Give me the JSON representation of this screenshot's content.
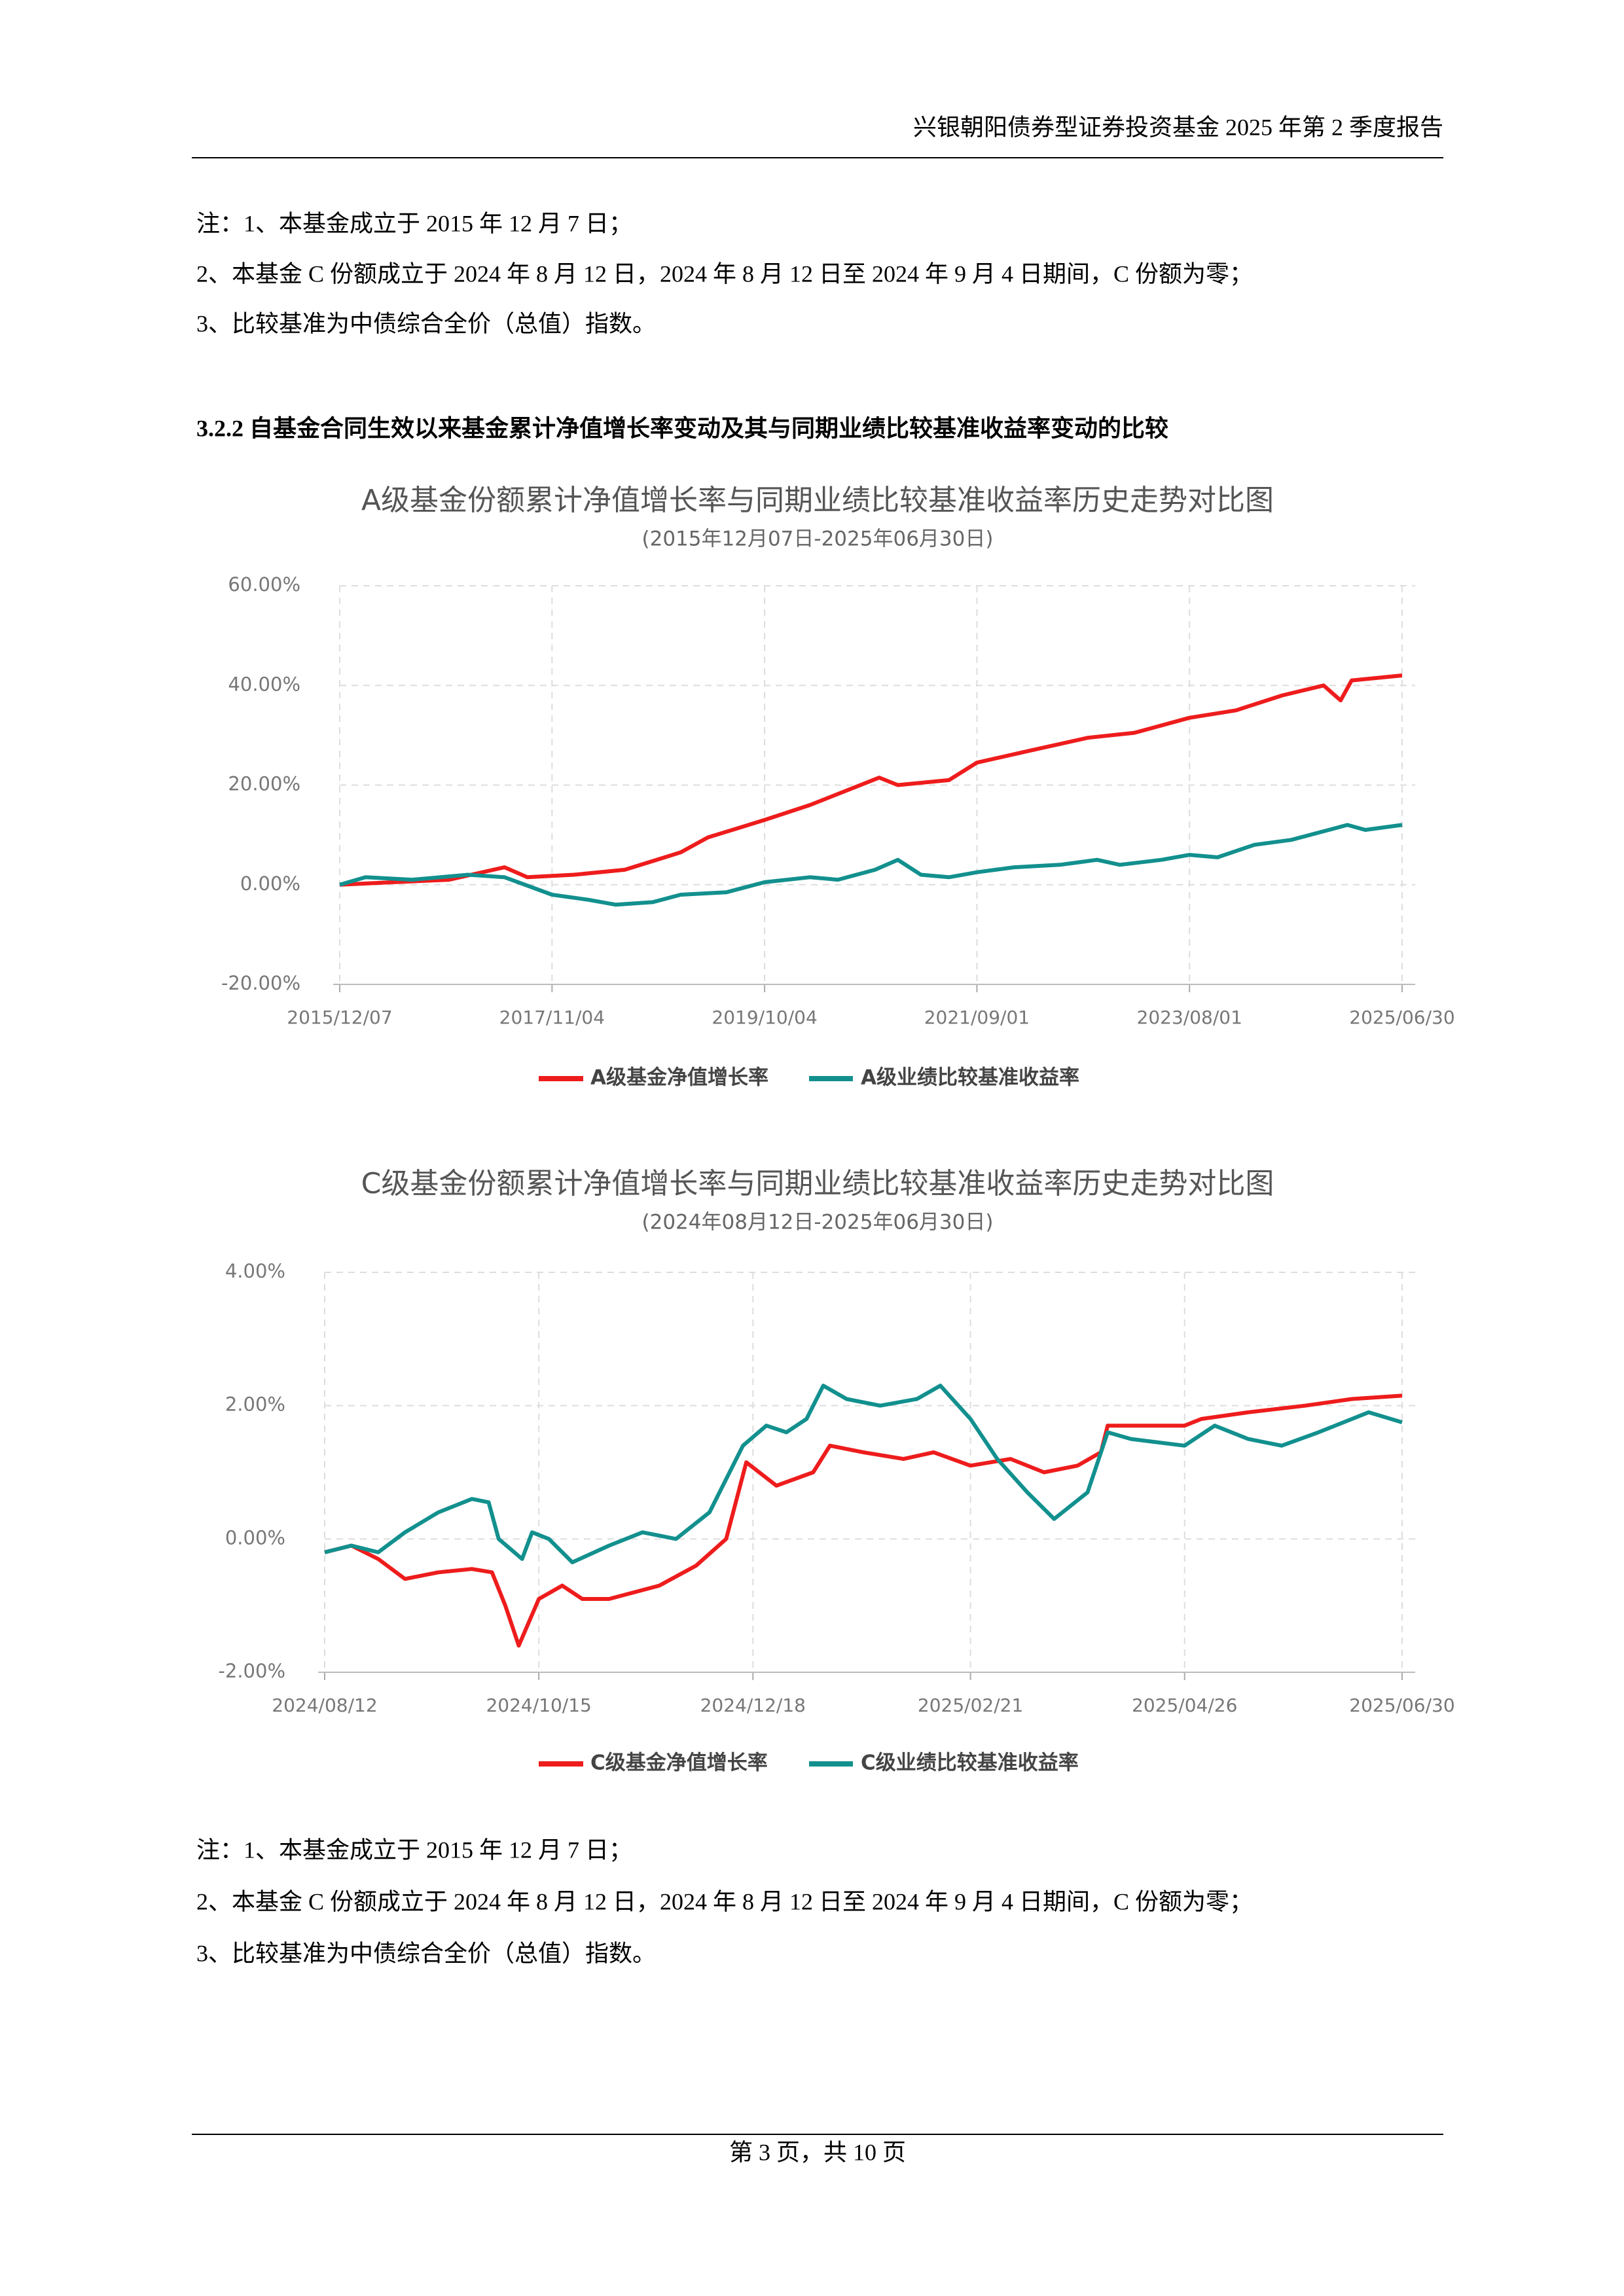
{
  "header": {
    "title": "兴银朝阳债券型证券投资基金 2025 年第 2 季度报告"
  },
  "notes_top": [
    "注：1、本基金成立于 2015 年 12 月 7 日；",
    "2、本基金 C 份额成立于 2024 年 8 月 12 日，2024 年 8 月 12 日至 2024 年 9 月 4 日期间，C 份额为零；",
    "3、比较基准为中债综合全价（总值）指数。"
  ],
  "section_title": "3.2.2 自基金合同生效以来基金累计净值增长率变动及其与同期业绩比较基准收益率变动的比较",
  "chart_data": [
    {
      "type": "line",
      "title": "A级基金份额累计净值增长率与同期业绩比较基准收益率历史走势对比图",
      "subtitle": "(2015年12月07日-2025年06月30日)",
      "xlim": [
        "2015/12/07",
        "2025/06/30"
      ],
      "xticks": [
        "2015/12/07",
        "2017/11/04",
        "2019/10/04",
        "2021/09/01",
        "2023/08/01",
        "2025/06/30"
      ],
      "ylim": [
        -20,
        60
      ],
      "yticks": [
        {
          "value": -20,
          "label": "-20.00%"
        },
        {
          "value": 0,
          "label": "0.00%"
        },
        {
          "value": 20,
          "label": "20.00%"
        },
        {
          "value": 40,
          "label": "40.00%"
        },
        {
          "value": 60,
          "label": "60.00%"
        }
      ],
      "grid": true,
      "series": [
        {
          "name": "A级基金净值增长率",
          "color": "#ee1c1c",
          "x": [
            "2015/12/07",
            "2016/06/01",
            "2016/12/01",
            "2017/06/01",
            "2017/08/15",
            "2018/01/15",
            "2018/07/01",
            "2019/01/01",
            "2019/04/01",
            "2019/10/04",
            "2020/03/01",
            "2020/10/15",
            "2020/12/15",
            "2021/06/01",
            "2021/09/01",
            "2022/03/01",
            "2022/09/01",
            "2023/02/01",
            "2023/08/01",
            "2024/01/01",
            "2024/06/01",
            "2024/10/15",
            "2024/12/10",
            "2025/01/15",
            "2025/06/30"
          ],
          "values": [
            0,
            0.5,
            1,
            3.5,
            1.5,
            2,
            3,
            6.5,
            9.5,
            13,
            16,
            21.5,
            20,
            21,
            24.5,
            27,
            29.5,
            30.5,
            33.5,
            35,
            38,
            40,
            37,
            41,
            42
          ]
        },
        {
          "name": "A级业绩比较基准收益率",
          "color": "#12908e",
          "x": [
            "2015/12/07",
            "2016/03/01",
            "2016/08/01",
            "2017/02/01",
            "2017/06/01",
            "2017/11/04",
            "2018/03/01",
            "2018/06/01",
            "2018/10/01",
            "2019/01/01",
            "2019/06/01",
            "2019/10/04",
            "2020/03/01",
            "2020/06/01",
            "2020/10/01",
            "2020/12/15",
            "2021/03/01",
            "2021/06/01",
            "2021/09/01",
            "2022/01/01",
            "2022/06/01",
            "2022/10/01",
            "2022/12/15",
            "2023/05/01",
            "2023/08/01",
            "2023/11/01",
            "2024/03/01",
            "2024/07/01",
            "2024/11/01",
            "2025/01/01",
            "2025/03/01",
            "2025/06/30"
          ],
          "values": [
            0,
            1.5,
            1,
            2,
            1.5,
            -2,
            -3,
            -4,
            -3.5,
            -2,
            -1.5,
            0.5,
            1.5,
            1,
            3,
            5,
            2,
            1.5,
            2.5,
            3.5,
            4,
            5,
            4,
            5,
            6,
            5.5,
            8,
            9,
            11,
            12,
            11,
            12
          ]
        }
      ]
    },
    {
      "type": "line",
      "title": "C级基金份额累计净值增长率与同期业绩比较基准收益率历史走势对比图",
      "subtitle": "(2024年08月12日-2025年06月30日)",
      "xlim": [
        "2024/08/12",
        "2025/06/30"
      ],
      "xticks": [
        "2024/08/12",
        "2024/10/15",
        "2024/12/18",
        "2025/02/21",
        "2025/04/26",
        "2025/06/30"
      ],
      "ylim": [
        -2,
        4
      ],
      "yticks": [
        {
          "value": -2,
          "label": "-2.00%"
        },
        {
          "value": 0,
          "label": "0.00%"
        },
        {
          "value": 2,
          "label": "2.00%"
        },
        {
          "value": 4,
          "label": "4.00%"
        }
      ],
      "grid": true,
      "series": [
        {
          "name": "C级基金净值增长率",
          "color": "#ee1c1c",
          "x": [
            "2024/08/12",
            "2024/08/20",
            "2024/08/28",
            "2024/09/05",
            "2024/09/15",
            "2024/09/25",
            "2024/10/01",
            "2024/10/05",
            "2024/10/09",
            "2024/10/15",
            "2024/10/22",
            "2024/10/28",
            "2024/11/05",
            "2024/11/20",
            "2024/12/01",
            "2024/12/10",
            "2024/12/16",
            "2024/12/25",
            "2025/01/05",
            "2025/01/10",
            "2025/01/20",
            "2025/02/01",
            "2025/02/10",
            "2025/02/21",
            "2025/03/05",
            "2025/03/15",
            "2025/03/25",
            "2025/04/01",
            "2025/04/03",
            "2025/04/10",
            "2025/04/26",
            "2025/05/01",
            "2025/05/15",
            "2025/06/01",
            "2025/06/15",
            "2025/06/30"
          ],
          "values": [
            -0.2,
            -0.1,
            -0.3,
            -0.6,
            -0.5,
            -0.45,
            -0.5,
            -1,
            -1.6,
            -0.9,
            -0.7,
            -0.9,
            -0.9,
            -0.7,
            -0.4,
            0,
            1.15,
            0.8,
            1,
            1.4,
            1.3,
            1.2,
            1.3,
            1.1,
            1.2,
            1,
            1.1,
            1.3,
            1.7,
            1.7,
            1.7,
            1.8,
            1.9,
            2,
            2.1,
            2.15
          ]
        },
        {
          "name": "C级业绩比较基准收益率",
          "color": "#12908e",
          "x": [
            "2024/08/12",
            "2024/08/20",
            "2024/08/28",
            "2024/09/05",
            "2024/09/15",
            "2024/09/25",
            "2024/09/30",
            "2024/10/03",
            "2024/10/10",
            "2024/10/13",
            "2024/10/18",
            "2024/10/25",
            "2024/11/05",
            "2024/11/15",
            "2024/11/25",
            "2024/12/05",
            "2024/12/15",
            "2024/12/22",
            "2024/12/28",
            "2025/01/03",
            "2025/01/08",
            "2025/01/15",
            "2025/01/25",
            "2025/02/05",
            "2025/02/12",
            "2025/02/21",
            "2025/03/01",
            "2025/03/10",
            "2025/03/18",
            "2025/03/28",
            "2025/04/03",
            "2025/04/10",
            "2025/04/26",
            "2025/05/05",
            "2025/05/15",
            "2025/05/25",
            "2025/06/05",
            "2025/06/20",
            "2025/06/30"
          ],
          "values": [
            -0.2,
            -0.1,
            -0.2,
            0.1,
            0.4,
            0.6,
            0.55,
            0,
            -0.3,
            0.1,
            0,
            -0.35,
            -0.1,
            0.1,
            0,
            0.4,
            1.4,
            1.7,
            1.6,
            1.8,
            2.3,
            2.1,
            2,
            2.1,
            2.3,
            1.8,
            1.2,
            0.7,
            0.3,
            0.7,
            1.6,
            1.5,
            1.4,
            1.7,
            1.5,
            1.4,
            1.6,
            1.9,
            1.75
          ]
        }
      ]
    }
  ],
  "notes_bottom": [
    "注：1、本基金成立于 2015 年 12 月 7 日；",
    "2、本基金 C 份额成立于 2024 年 8 月 12 日，2024 年 8 月 12 日至 2024 年 9 月 4 日期间，C 份额为零；",
    "3、比较基准为中债综合全价（总值）指数。"
  ],
  "footer": {
    "page": "第 3 页，共 10 页"
  }
}
